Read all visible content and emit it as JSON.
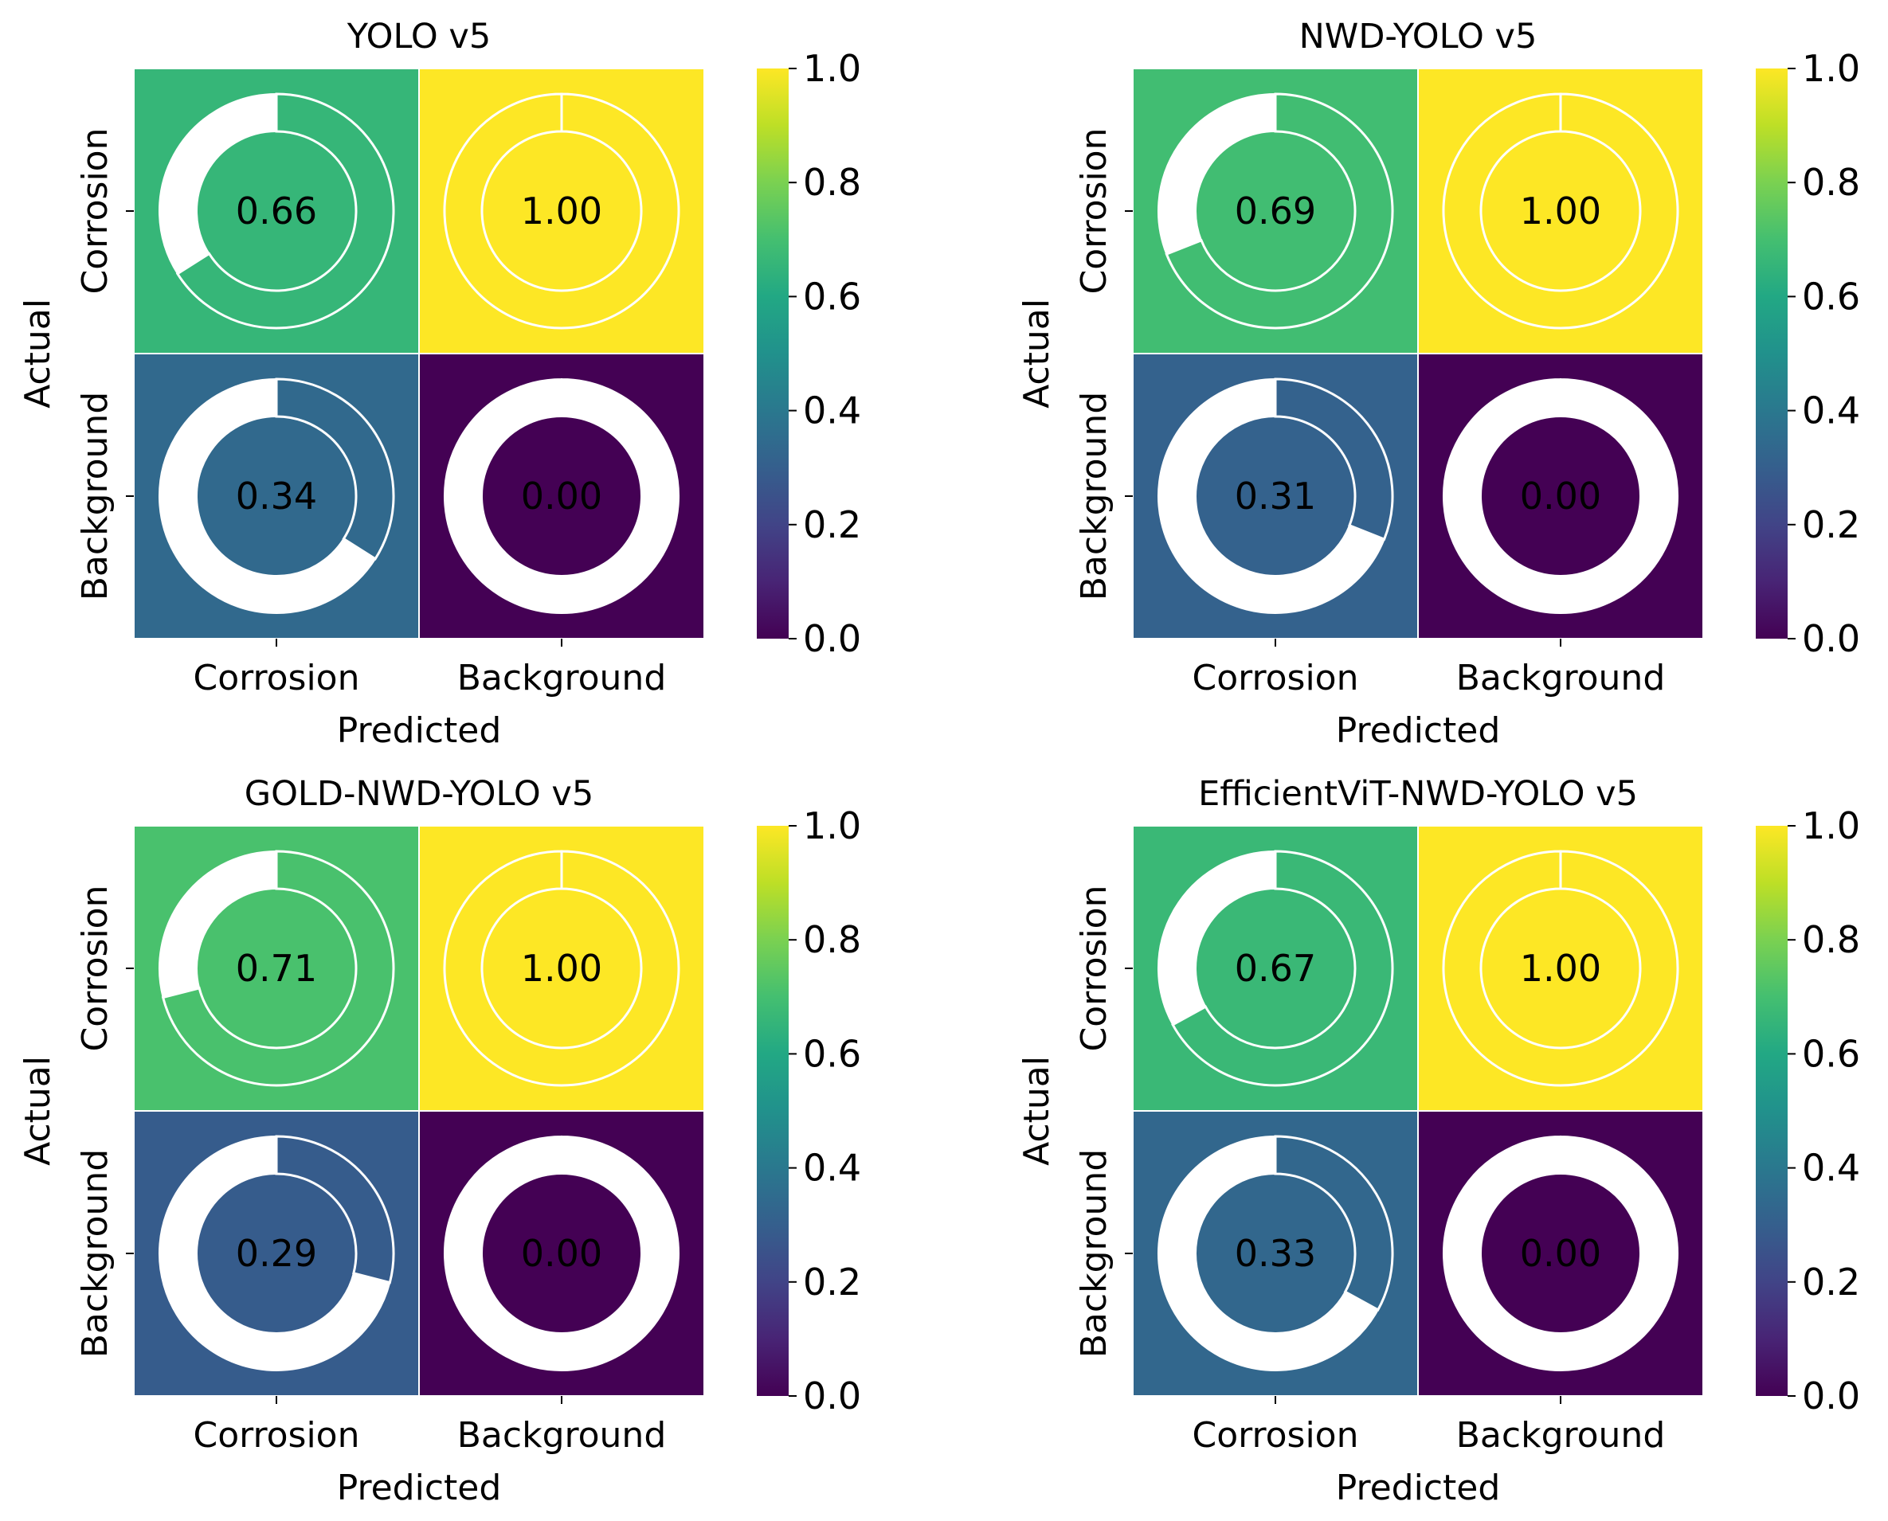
{
  "chart_data": [
    {
      "type": "heatmap",
      "title": "YOLO v5",
      "xlabel": "Predicted",
      "ylabel": "Actual",
      "x_categories": [
        "Corrosion",
        "Background"
      ],
      "y_categories": [
        "Corrosion",
        "Background"
      ],
      "values": [
        [
          0.66,
          1.0
        ],
        [
          0.34,
          0.0
        ]
      ],
      "labels": [
        [
          "0.66",
          "1.00"
        ],
        [
          "0.34",
          "0.00"
        ]
      ],
      "colorbar": {
        "range": [
          0.0,
          1.0
        ],
        "ticks": [
          "0.0",
          "0.2",
          "0.4",
          "0.6",
          "0.8",
          "1.0"
        ],
        "colormap": "viridis"
      }
    },
    {
      "type": "heatmap",
      "title": "NWD-YOLO v5",
      "xlabel": "Predicted",
      "ylabel": "Actual",
      "x_categories": [
        "Corrosion",
        "Background"
      ],
      "y_categories": [
        "Corrosion",
        "Background"
      ],
      "values": [
        [
          0.69,
          1.0
        ],
        [
          0.31,
          0.0
        ]
      ],
      "labels": [
        [
          "0.69",
          "1.00"
        ],
        [
          "0.31",
          "0.00"
        ]
      ],
      "colorbar": {
        "range": [
          0.0,
          1.0
        ],
        "ticks": [
          "0.0",
          "0.2",
          "0.4",
          "0.6",
          "0.8",
          "1.0"
        ],
        "colormap": "viridis"
      }
    },
    {
      "type": "heatmap",
      "title": "GOLD-NWD-YOLO v5",
      "xlabel": "Predicted",
      "ylabel": "Actual",
      "x_categories": [
        "Corrosion",
        "Background"
      ],
      "y_categories": [
        "Corrosion",
        "Background"
      ],
      "values": [
        [
          0.71,
          1.0
        ],
        [
          0.29,
          0.0
        ]
      ],
      "labels": [
        [
          "0.71",
          "1.00"
        ],
        [
          "0.29",
          "0.00"
        ]
      ],
      "colorbar": {
        "range": [
          0.0,
          1.0
        ],
        "ticks": [
          "0.0",
          "0.2",
          "0.4",
          "0.6",
          "0.8",
          "1.0"
        ],
        "colormap": "viridis"
      }
    },
    {
      "type": "heatmap",
      "title": "EfficientViT-NWD-YOLO v5",
      "xlabel": "Predicted",
      "ylabel": "Actual",
      "x_categories": [
        "Corrosion",
        "Background"
      ],
      "y_categories": [
        "Corrosion",
        "Background"
      ],
      "values": [
        [
          0.67,
          1.0
        ],
        [
          0.33,
          0.0
        ]
      ],
      "labels": [
        [
          "0.67",
          "1.00"
        ],
        [
          "0.33",
          "0.00"
        ]
      ],
      "colorbar": {
        "range": [
          0.0,
          1.0
        ],
        "ticks": [
          "0.0",
          "0.2",
          "0.4",
          "0.6",
          "0.8",
          "1.0"
        ],
        "colormap": "viridis"
      }
    }
  ]
}
